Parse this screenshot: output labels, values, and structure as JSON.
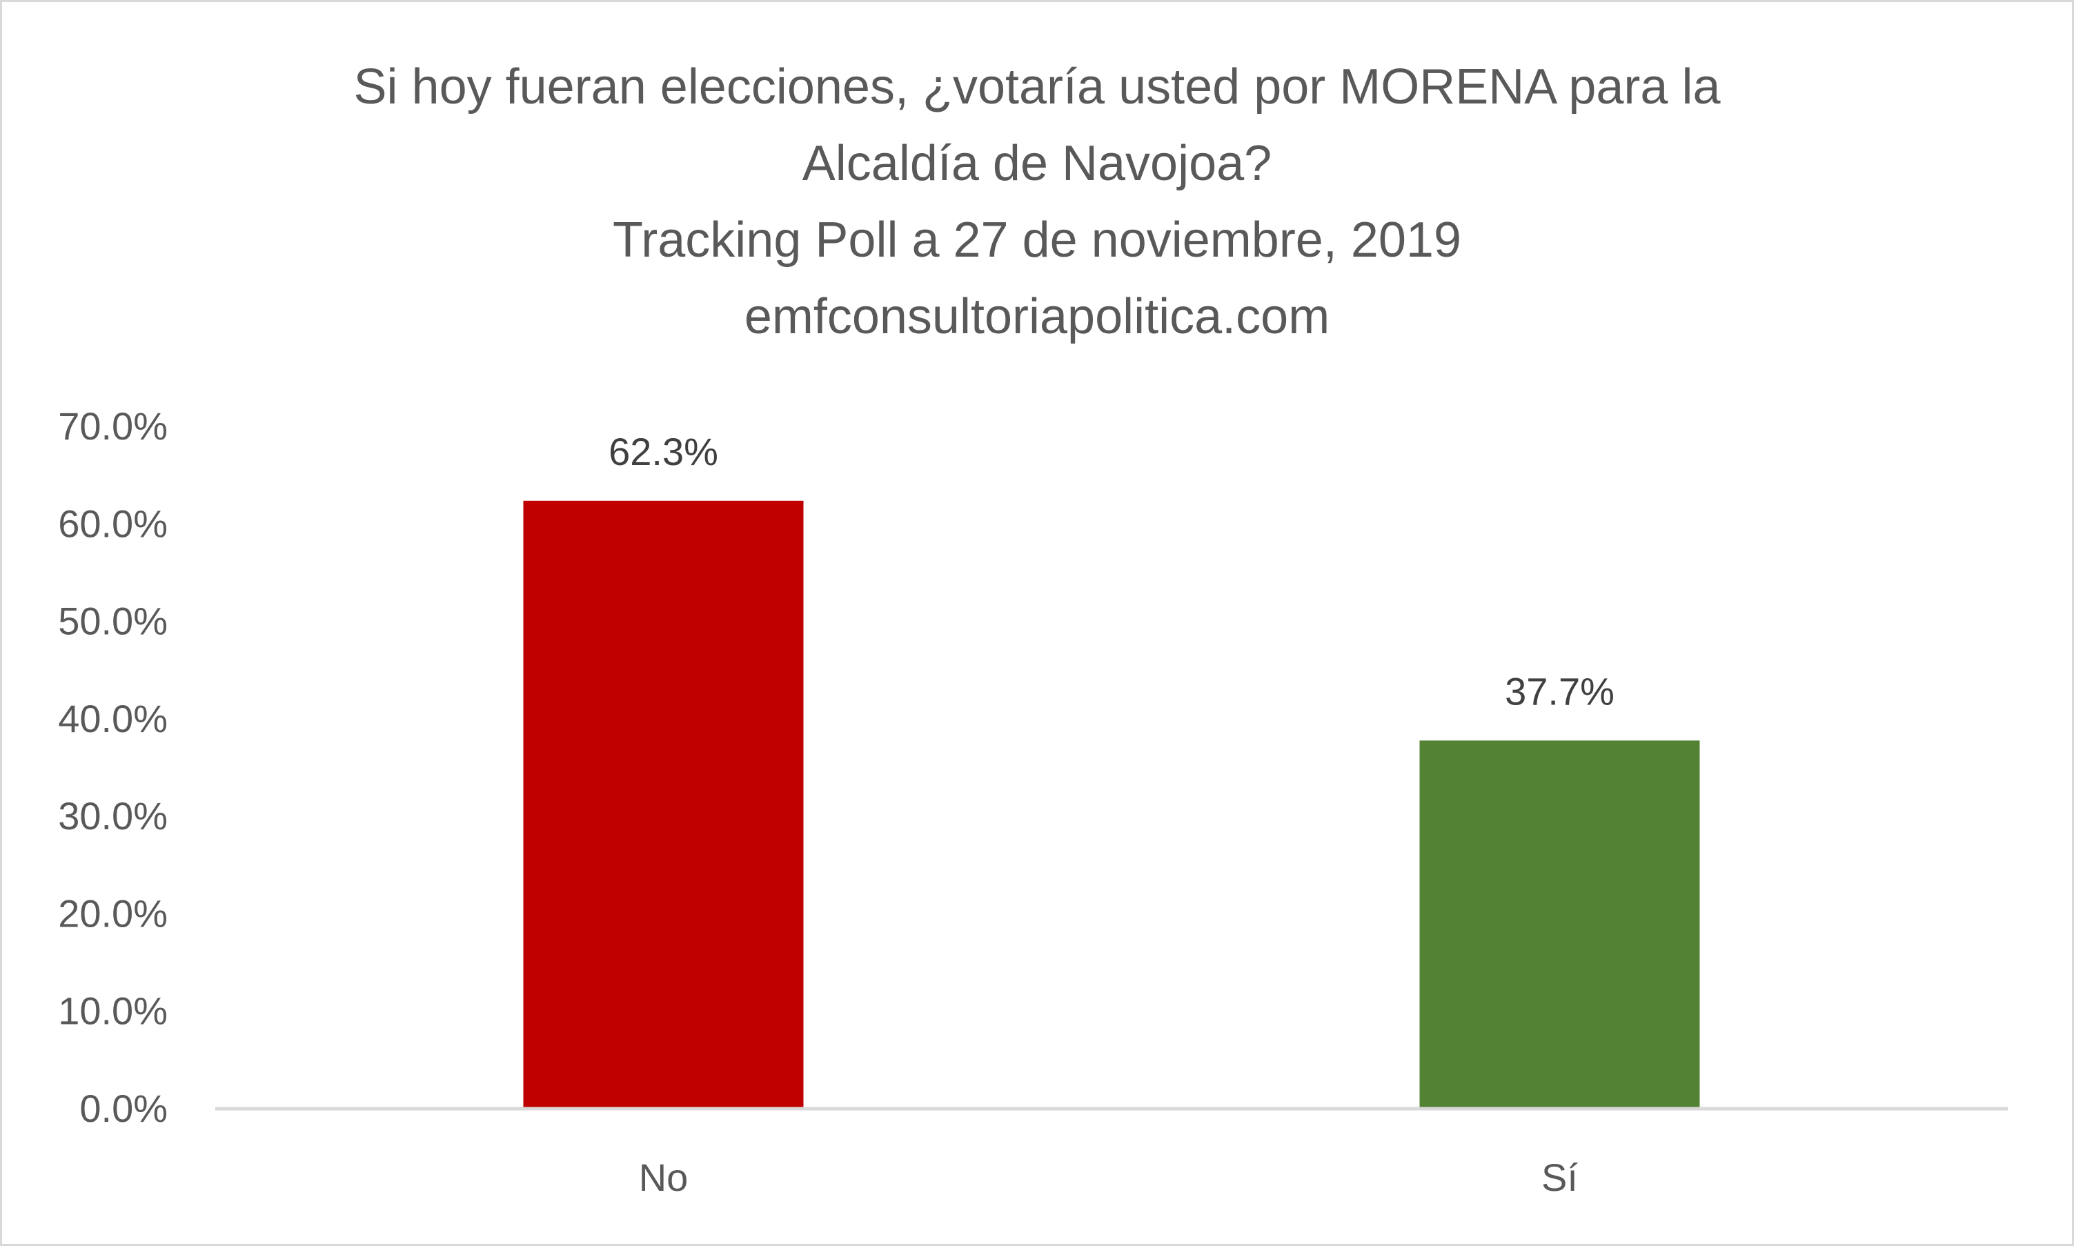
{
  "chart_data": {
    "type": "bar",
    "title_lines": [
      "Si hoy fueran elecciones, ¿votaría usted por MORENA para la",
      "Alcaldía de Navojoa?",
      "Tracking Poll a 27 de noviembre, 2019",
      "emfconsultoriapolitica.com"
    ],
    "categories": [
      "No",
      "Sí"
    ],
    "values": [
      62.3,
      37.7
    ],
    "data_labels": [
      "62.3%",
      "37.7%"
    ],
    "colors": [
      "#c00000",
      "#548235"
    ],
    "ylim": [
      0,
      70
    ],
    "yticks": [
      "0.0%",
      "10.0%",
      "20.0%",
      "30.0%",
      "40.0%",
      "50.0%",
      "60.0%",
      "70.0%"
    ],
    "xlabel": "",
    "ylabel": "",
    "grid": false,
    "legend": "none"
  }
}
